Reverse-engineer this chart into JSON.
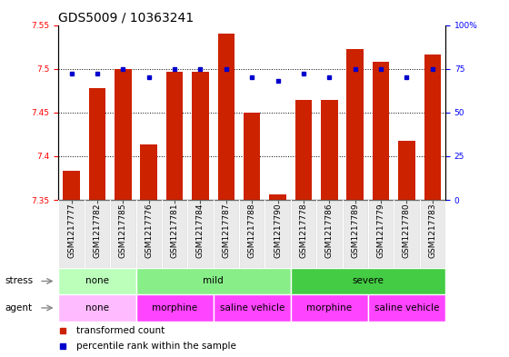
{
  "title": "GDS5009 / 10363241",
  "samples": [
    "GSM1217777",
    "GSM1217782",
    "GSM1217785",
    "GSM1217776",
    "GSM1217781",
    "GSM1217784",
    "GSM1217787",
    "GSM1217788",
    "GSM1217790",
    "GSM1217778",
    "GSM1217786",
    "GSM1217789",
    "GSM1217779",
    "GSM1217780",
    "GSM1217783"
  ],
  "bar_values": [
    7.383,
    7.478,
    7.5,
    7.413,
    7.497,
    7.497,
    7.54,
    7.45,
    7.356,
    7.464,
    7.464,
    7.523,
    7.508,
    7.418,
    7.516
  ],
  "dot_values": [
    72,
    72,
    75,
    70,
    75,
    75,
    75,
    70,
    68,
    72,
    70,
    75,
    75,
    70,
    75
  ],
  "ylim_left": [
    7.35,
    7.55
  ],
  "ylim_right": [
    0,
    100
  ],
  "yticks_left": [
    7.35,
    7.4,
    7.45,
    7.5,
    7.55
  ],
  "yticks_right": [
    0,
    25,
    50,
    75,
    100
  ],
  "bar_color": "#cc2200",
  "dot_color": "#0000cc",
  "bar_bottom": 7.35,
  "stress_groups": [
    {
      "label": "none",
      "start": 0,
      "end": 3,
      "color": "#bbffbb"
    },
    {
      "label": "mild",
      "start": 3,
      "end": 9,
      "color": "#88ee88"
    },
    {
      "label": "severe",
      "start": 9,
      "end": 15,
      "color": "#44cc44"
    }
  ],
  "agent_groups": [
    {
      "label": "none",
      "start": 0,
      "end": 3,
      "color": "#ffbbff"
    },
    {
      "label": "morphine",
      "start": 3,
      "end": 6,
      "color": "#ff44ff"
    },
    {
      "label": "saline vehicle",
      "start": 6,
      "end": 9,
      "color": "#ff44ff"
    },
    {
      "label": "morphine",
      "start": 9,
      "end": 12,
      "color": "#ff44ff"
    },
    {
      "label": "saline vehicle",
      "start": 12,
      "end": 15,
      "color": "#ff44ff"
    }
  ],
  "stress_label": "stress",
  "agent_label": "agent",
  "legend_bar_label": "transformed count",
  "legend_dot_label": "percentile rank within the sample",
  "grid_lines": [
    7.4,
    7.45,
    7.5
  ],
  "bar_width": 0.65,
  "title_fontsize": 10,
  "tick_fontsize": 6.5,
  "label_fontsize": 7.5,
  "annot_fontsize": 7.5
}
